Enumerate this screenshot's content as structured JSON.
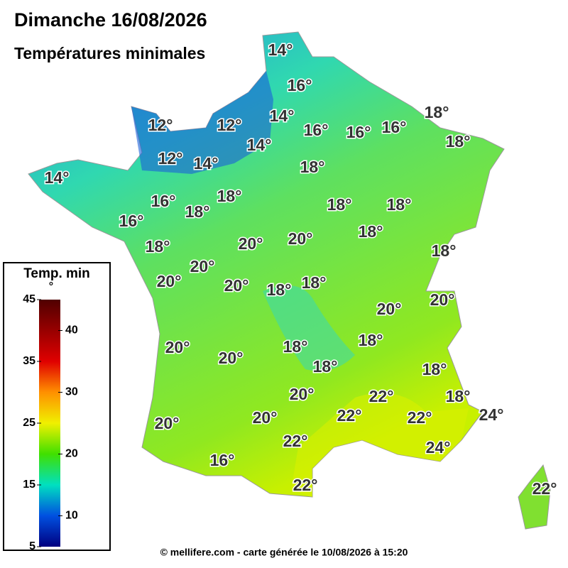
{
  "header": {
    "title": "Dimanche 16/08/2026",
    "subtitle": "Températures minimales"
  },
  "labels": [
    "14°",
    "16°",
    "18°",
    "12°",
    "12°",
    "14°",
    "16°",
    "16°",
    "16°",
    "18°",
    "14°",
    "12°",
    "14°",
    "18°",
    "14°",
    "16°",
    "18°",
    "18°",
    "18°",
    "18°",
    "16°",
    "18°",
    "20°",
    "20°",
    "18°",
    "18°",
    "20°",
    "20°",
    "20°",
    "18°",
    "18°",
    "20°",
    "20°",
    "20°",
    "18°",
    "18°",
    "20°",
    "18°",
    "18°",
    "20°",
    "22°",
    "18°",
    "22°",
    "20°",
    "22°",
    "24°",
    "20°",
    "22°",
    "24°",
    "16°",
    "22°",
    "22°"
  ],
  "legend": {
    "title_lines": [
      "Temp. min",
      "°"
    ],
    "min": 5,
    "max": 45,
    "ticks_left": [
      45,
      35,
      25,
      15,
      5
    ],
    "ticks_right": [
      40,
      30,
      20,
      10
    ]
  },
  "footer": "© mellifere.com - carte générée le 10/08/2026 à 15:20"
}
